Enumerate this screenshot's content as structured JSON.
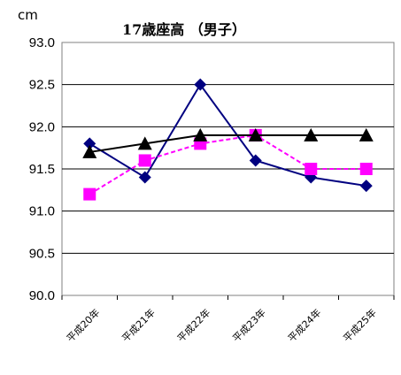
{
  "chart_data": {
    "type": "line",
    "title": "17歳座高 （男子）",
    "ylabel": "cm",
    "xlabel": "",
    "categories": [
      "平成20年",
      "平成21年",
      "平成22年",
      "平成23年",
      "平成24年",
      "平成25年"
    ],
    "ylim": [
      90.0,
      93.0
    ],
    "yticks": [
      "93.0",
      "92.5",
      "92.0",
      "91.5",
      "91.0",
      "90.5",
      "90.0"
    ],
    "grid": true,
    "legend": "none",
    "series": [
      {
        "values": [
          91.8,
          91.4,
          92.5,
          91.6,
          91.4,
          91.3
        ],
        "color": "#000080",
        "marker": "diamond",
        "dash": "solid"
      },
      {
        "values": [
          91.2,
          91.6,
          91.8,
          91.9,
          91.5,
          91.5
        ],
        "color": "#ff00ff",
        "marker": "square",
        "dash": "dashed"
      },
      {
        "values": [
          91.7,
          91.8,
          91.9,
          91.9,
          91.9,
          91.9
        ],
        "color": "#000000",
        "marker": "triangle",
        "dash": "solid"
      }
    ]
  }
}
